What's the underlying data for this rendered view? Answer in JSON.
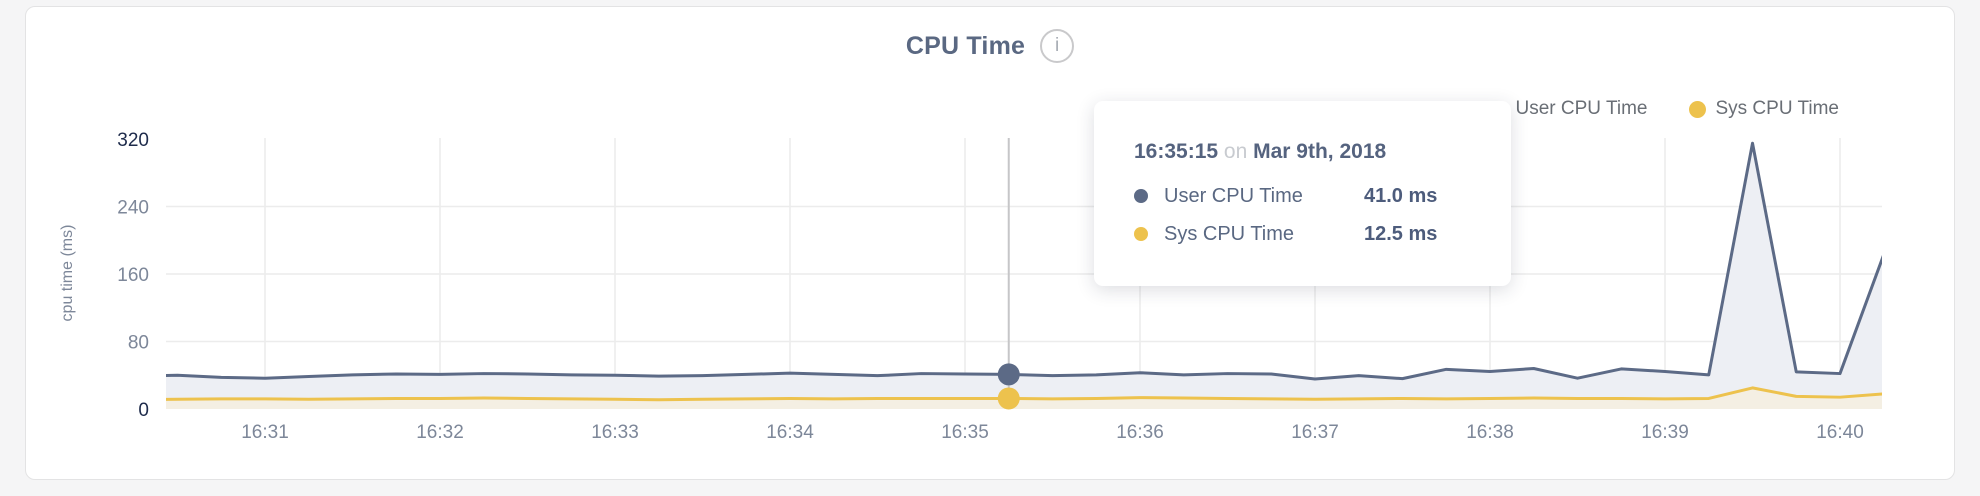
{
  "card": {
    "title": "CPU Time",
    "info_icon_glyph": "i"
  },
  "legend": {
    "items": [
      {
        "label": "User CPU Time"
      },
      {
        "label": "Sys CPU Time"
      }
    ]
  },
  "tooltip": {
    "time": "16:35:15",
    "on_word": "on",
    "date": "Mar 9th, 2018",
    "rows": [
      {
        "label": "User CPU Time",
        "value": "41.0 ms"
      },
      {
        "label": "Sys CPU Time",
        "value": "12.5 ms"
      }
    ]
  },
  "chart_data": {
    "type": "area",
    "title": "CPU Time",
    "xlabel": "",
    "ylabel": "cpu time (ms)",
    "unit": "ms",
    "grid": true,
    "legend_position": "top-right",
    "ylim": [
      0,
      320
    ],
    "y_ticks": [
      0,
      80,
      160,
      240,
      320
    ],
    "y_gridlines": [
      80,
      160,
      240
    ],
    "x_ticks": [
      "16:31",
      "16:32",
      "16:33",
      "16:34",
      "16:35",
      "16:36",
      "16:37",
      "16:38",
      "16:39",
      "16:40"
    ],
    "times": [
      "16:30:15",
      "16:30:30",
      "16:30:45",
      "16:31:00",
      "16:31:15",
      "16:31:30",
      "16:31:45",
      "16:32:00",
      "16:32:15",
      "16:32:30",
      "16:32:45",
      "16:33:00",
      "16:33:15",
      "16:33:30",
      "16:33:45",
      "16:34:00",
      "16:34:15",
      "16:34:30",
      "16:34:45",
      "16:35:00",
      "16:35:15",
      "16:35:30",
      "16:35:45",
      "16:36:00",
      "16:36:15",
      "16:36:30",
      "16:36:45",
      "16:37:00",
      "16:37:15",
      "16:37:30",
      "16:37:45",
      "16:38:00",
      "16:38:15",
      "16:38:30",
      "16:38:45",
      "16:39:00",
      "16:39:15",
      "16:39:30",
      "16:39:45",
      "16:40:00",
      "16:40:15"
    ],
    "series": [
      {
        "name": "User CPU Time",
        "color": "#5c6a86",
        "fill": "#edeff4",
        "values": [
          39,
          40,
          37.5,
          36.5,
          38.5,
          40.5,
          41.5,
          41,
          42,
          41.5,
          40.5,
          40,
          39,
          39.5,
          41,
          42.5,
          41,
          39.5,
          42,
          41.5,
          41.0,
          39.5,
          40.5,
          43,
          40.5,
          42,
          41.5,
          35.5,
          39.5,
          36,
          47,
          44.5,
          48,
          36.5,
          47.5,
          44.5,
          40.5,
          315,
          44,
          42,
          183
        ]
      },
      {
        "name": "Sys CPU Time",
        "color": "#edc24d",
        "fill": "#f4efe3",
        "values": [
          11,
          11.5,
          12,
          12,
          11.5,
          12,
          12.5,
          12.5,
          13,
          12.5,
          12,
          11.5,
          11,
          11.5,
          12,
          12.5,
          12,
          12.5,
          12.5,
          12.5,
          12.5,
          12,
          12.5,
          13.5,
          13,
          12.5,
          12,
          11.5,
          12,
          12.5,
          12,
          12.5,
          13,
          12.5,
          12.5,
          12,
          12.5,
          25,
          15,
          14,
          18
        ]
      }
    ],
    "hover": {
      "time": "16:35:15",
      "date": "Mar 9th, 2018",
      "user_value": 41.0,
      "sys_value": 12.5
    },
    "colors": {
      "grid": "#ececec",
      "crosshair": "#c6c6c8",
      "tick_label": "#7d8799",
      "tick_label_dark": "#1e2b4b"
    }
  }
}
